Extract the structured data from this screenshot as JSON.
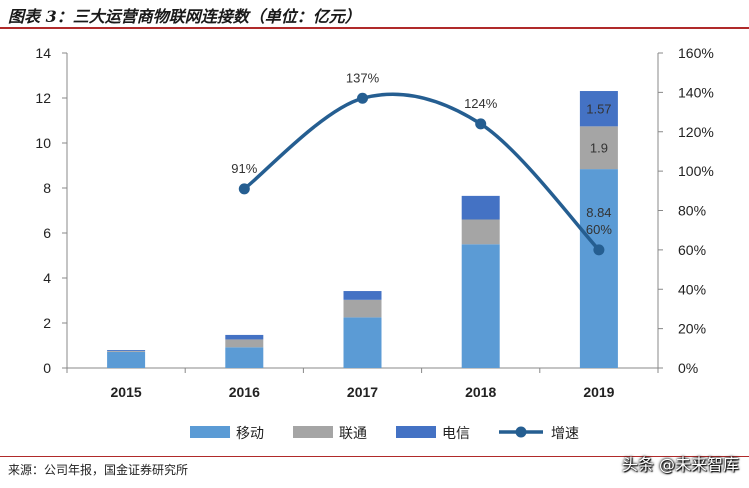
{
  "header": {
    "title": "图表 3：三大运营商物联网连接数（单位：亿元）"
  },
  "footer": {
    "source": "来源：公司年报，国金证券研究所",
    "watermark": "头条 @未来智库"
  },
  "chart_data": {
    "type": "bar",
    "stacked": true,
    "categories": [
      "2015",
      "2016",
      "2017",
      "2018",
      "2019"
    ],
    "series": [
      {
        "name": "移动",
        "color": "#5b9bd5",
        "values": [
          0.72,
          0.92,
          2.25,
          5.5,
          8.84
        ]
      },
      {
        "name": "联通",
        "color": "#a5a5a5",
        "values": [
          0.04,
          0.35,
          0.78,
          1.1,
          1.9
        ]
      },
      {
        "name": "电信",
        "color": "#4472c4",
        "values": [
          0.04,
          0.2,
          0.39,
          1.05,
          1.57
        ]
      }
    ],
    "line": {
      "name": "增速",
      "color": "#255e91",
      "axis": "right",
      "values": [
        null,
        0.91,
        1.37,
        1.24,
        0.6
      ],
      "labels": [
        "",
        "91%",
        "137%",
        "124%",
        "60%"
      ]
    },
    "bar_data_labels": [
      {
        "category": "2019",
        "series": "移动",
        "text": "8.84"
      },
      {
        "category": "2019",
        "series": "联通",
        "text": "1.9"
      },
      {
        "category": "2019",
        "series": "电信",
        "text": "1.57"
      }
    ],
    "y_left": {
      "min": 0,
      "max": 14,
      "ticks": [
        "0",
        "2",
        "4",
        "6",
        "8",
        "10",
        "12",
        "14"
      ]
    },
    "y_right": {
      "min": 0,
      "max": 1.6,
      "ticks": [
        "0%",
        "20%",
        "40%",
        "60%",
        "80%",
        "100%",
        "120%",
        "140%",
        "160%"
      ]
    },
    "grid": false,
    "legend_position": "bottom"
  }
}
